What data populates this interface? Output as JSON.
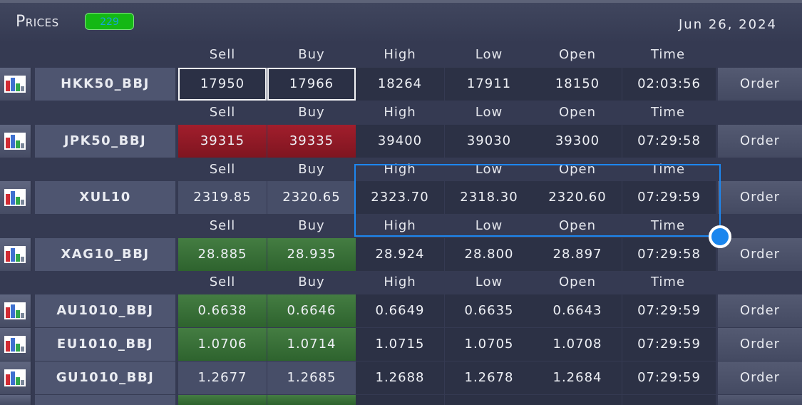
{
  "header": {
    "title": "Prices",
    "badge": "229",
    "date": "Jun 26, 2024"
  },
  "columns": {
    "sell": "Sell",
    "buy": "Buy",
    "high": "High",
    "low": "Low",
    "open": "Open",
    "time": "Time"
  },
  "order_label": "Order",
  "rows": [
    {
      "symbol": "HKK50_BBJ",
      "sell": "17950",
      "buy": "17966",
      "high": "18264",
      "low": "17911",
      "open": "18150",
      "time": "02:03:56",
      "state": "selected"
    },
    {
      "symbol": "JPK50_BBJ",
      "sell": "39315",
      "buy": "39335",
      "high": "39400",
      "low": "39030",
      "open": "39300",
      "time": "07:29:58",
      "state": "down"
    },
    {
      "symbol": "XUL10",
      "sell": "2319.85",
      "buy": "2320.65",
      "high": "2323.70",
      "low": "2318.30",
      "open": "2320.60",
      "time": "07:29:59",
      "state": "neutral"
    },
    {
      "symbol": "XAG10_BBJ",
      "sell": "28.885",
      "buy": "28.935",
      "high": "28.924",
      "low": "28.800",
      "open": "28.897",
      "time": "07:29:58",
      "state": "up"
    },
    {
      "symbol": "AU1010_BBJ",
      "sell": "0.6638",
      "buy": "0.6646",
      "high": "0.6649",
      "low": "0.6635",
      "open": "0.6643",
      "time": "07:29:59",
      "state": "up"
    },
    {
      "symbol": "EU1010_BBJ",
      "sell": "1.0706",
      "buy": "1.0714",
      "high": "1.0715",
      "low": "1.0705",
      "open": "1.0708",
      "time": "07:29:59",
      "state": "up"
    },
    {
      "symbol": "GU1010_BBJ",
      "sell": "1.2677",
      "buy": "1.2685",
      "high": "1.2688",
      "low": "1.2678",
      "open": "1.2684",
      "time": "07:29:59",
      "state": "neutral"
    }
  ],
  "colors": {
    "background": "#353a52",
    "down": "#a11e2c",
    "up": "#447d42",
    "selection": "#1d87f0"
  },
  "icons": {
    "chart_button": "bar-chart-icon"
  }
}
